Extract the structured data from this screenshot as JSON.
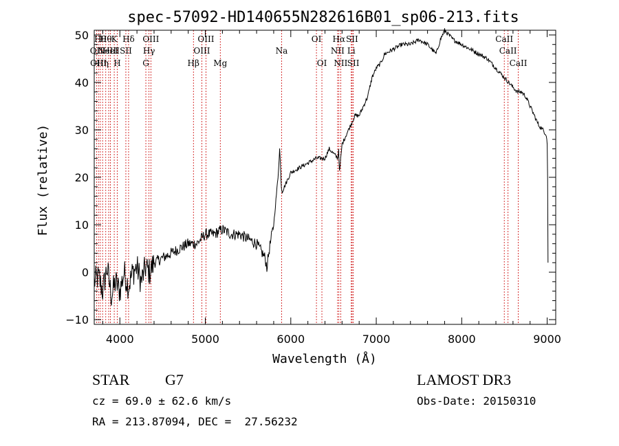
{
  "chart_data": {
    "type": "line",
    "title": "spec-57092-HD140655N282616B01_sp06-213.fits",
    "xlabel": "Wavelength (Å)",
    "ylabel": "Flux (relative)",
    "xlim": [
      3700,
      9100
    ],
    "ylim": [
      -11,
      51
    ],
    "xticks": [
      4000,
      5000,
      6000,
      7000,
      8000,
      9000
    ],
    "yticks": [
      -10,
      0,
      10,
      20,
      30,
      40,
      50
    ],
    "line_color": "#000000",
    "marker_color": "#cc0000",
    "series": [
      {
        "name": "flux",
        "x": [
          3700,
          3750,
          3800,
          3850,
          3900,
          3950,
          4000,
          4050,
          4100,
          4150,
          4200,
          4250,
          4300,
          4350,
          4400,
          4500,
          4600,
          4700,
          4800,
          4900,
          5000,
          5100,
          5200,
          5300,
          5400,
          5500,
          5600,
          5700,
          5720,
          5750,
          5780,
          5800,
          5820,
          5850,
          5870,
          5880,
          5890,
          5900,
          5950,
          6000,
          6100,
          6200,
          6300,
          6400,
          6450,
          6500,
          6550,
          6560,
          6570,
          6600,
          6650,
          6700,
          6750,
          6800,
          6850,
          6900,
          6950,
          7000,
          7050,
          7100,
          7200,
          7300,
          7400,
          7500,
          7600,
          7650,
          7700,
          7750,
          7800,
          7850,
          7900,
          8000,
          8100,
          8200,
          8300,
          8400,
          8450,
          8500,
          8550,
          8600,
          8650,
          8700,
          8750,
          8800,
          8850,
          8900,
          8950,
          8990,
          9000,
          9005,
          9010
        ],
        "y": [
          -2,
          -1,
          -4,
          1,
          -5,
          -2,
          -4,
          0,
          -3,
          0,
          1,
          -2,
          1,
          0,
          2,
          3,
          4,
          5,
          6,
          6,
          8,
          8,
          9,
          8,
          8,
          7,
          6,
          3,
          1,
          5,
          8,
          10,
          14,
          20,
          26,
          22,
          18,
          17,
          19,
          21,
          22,
          23,
          24,
          24,
          26,
          25,
          24,
          26,
          21,
          27,
          29,
          31,
          33,
          33,
          35,
          37,
          41,
          43,
          44,
          46,
          47,
          48,
          48,
          49,
          48,
          47,
          46,
          49,
          51,
          50,
          49,
          48,
          47,
          46,
          45,
          43,
          42,
          41,
          40,
          39,
          38,
          38,
          37,
          35,
          33,
          31,
          30,
          29,
          27,
          20,
          2
        ]
      }
    ],
    "lines": [
      {
        "x": 3727,
        "row": 1,
        "label": "OII"
      },
      {
        "x": 3750,
        "row": 2,
        "label": "OIII"
      },
      {
        "x": 3771,
        "row": 0,
        "label": "Hθ"
      },
      {
        "x": 3798,
        "row": 2,
        "label": "Hη"
      },
      {
        "x": 3835,
        "row": 0,
        "label": "Hθ"
      },
      {
        "x": 3869,
        "row": 1,
        "label": "NeIII"
      },
      {
        "x": 3889,
        "row": 1,
        "label": "HeI"
      },
      {
        "x": 3934,
        "row": 0,
        "label": "K"
      },
      {
        "x": 3969,
        "row": 2,
        "label": "H"
      },
      {
        "x": 4070,
        "row": 1,
        "label": "SII"
      },
      {
        "x": 4102,
        "row": 0,
        "label": "Hδ"
      },
      {
        "x": 4304,
        "row": 2,
        "label": "G"
      },
      {
        "x": 4341,
        "row": 1,
        "label": "Hγ"
      },
      {
        "x": 4363,
        "row": 0,
        "label": "OIII"
      },
      {
        "x": 4861,
        "row": 2,
        "label": "Hβ"
      },
      {
        "x": 4959,
        "row": 1,
        "label": "OIII"
      },
      {
        "x": 5007,
        "row": 0,
        "label": "OIII"
      },
      {
        "x": 5175,
        "row": 2,
        "label": "Mg"
      },
      {
        "x": 5893,
        "row": 1,
        "label": "Na"
      },
      {
        "x": 6300,
        "row": 0,
        "label": "OI"
      },
      {
        "x": 6364,
        "row": 2,
        "label": "OI"
      },
      {
        "x": 6548,
        "row": 1,
        "label": "NII"
      },
      {
        "x": 6563,
        "row": 0,
        "label": "Hα"
      },
      {
        "x": 6584,
        "row": 2,
        "label": "NII"
      },
      {
        "x": 6708,
        "row": 1,
        "label": "Li"
      },
      {
        "x": 6717,
        "row": 0,
        "label": "SII"
      },
      {
        "x": 6731,
        "row": 2,
        "label": "SII"
      },
      {
        "x": 8498,
        "row": 0,
        "label": "CaII"
      },
      {
        "x": 8542,
        "row": 1,
        "label": "CaII"
      },
      {
        "x": 8662,
        "row": 2,
        "label": "CaII"
      }
    ]
  },
  "info": {
    "class_label": "STAR",
    "subclass": "G7",
    "survey": "LAMOST DR3",
    "cz": "cz = 69.0 ± 62.6 km/s",
    "obs_date": "Obs-Date: 20150310",
    "coords": "RA = 213.87094, DEC =  27.56232"
  }
}
